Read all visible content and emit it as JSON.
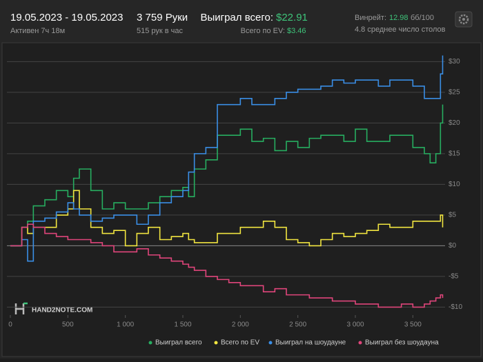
{
  "header": {
    "date_range": "19.05.2023 - 19.05.2023",
    "active": "Активен 7ч 18м",
    "hands": "3 759 Руки",
    "hands_per_hour": "515 рук в час",
    "won_label": "Выиграл всего:",
    "won_value": "$22.91",
    "ev_label": "Всего по EV:",
    "ev_value": "$3.46",
    "winrate_label": "Винрейт:",
    "winrate_value": "12.98",
    "winrate_unit": "бб/100",
    "tables": "4.8 среднее число столов"
  },
  "chart_data": {
    "type": "line",
    "watermark": "HAND2NOTE.COM",
    "x": [
      0,
      100,
      150,
      200,
      300,
      400,
      500,
      550,
      600,
      700,
      800,
      900,
      1000,
      1100,
      1200,
      1300,
      1400,
      1500,
      1550,
      1600,
      1700,
      1800,
      1900,
      2000,
      2100,
      2200,
      2300,
      2400,
      2500,
      2600,
      2700,
      2800,
      2900,
      3000,
      3100,
      3200,
      3300,
      3400,
      3500,
      3600,
      3650,
      3700,
      3740,
      3759
    ],
    "series": [
      {
        "name": "Выиграл всего",
        "color": "#27ae60",
        "values": [
          0,
          3,
          4,
          6.5,
          7.5,
          9,
          8,
          11,
          12.5,
          9,
          6,
          7,
          6,
          6,
          7,
          8,
          9,
          9.5,
          8,
          12.5,
          14,
          18,
          18,
          19,
          17,
          17.5,
          15.5,
          17,
          16,
          17.5,
          18,
          18,
          17,
          19,
          17,
          17,
          18,
          18,
          16,
          15,
          13.5,
          15,
          20,
          23
        ]
      },
      {
        "name": "Всего по EV",
        "color": "#f2e640",
        "values": [
          0,
          3,
          2,
          3,
          3,
          5,
          6,
          9,
          6,
          3,
          2,
          2.5,
          0,
          2,
          3,
          1,
          1.5,
          2,
          1,
          0.5,
          0.5,
          2,
          2,
          3,
          3,
          4,
          3,
          1,
          0.5,
          0,
          1,
          2,
          1.5,
          2,
          2.5,
          3.5,
          3,
          3,
          4,
          4,
          4,
          4,
          5,
          3
        ]
      },
      {
        "name": "Выиграл на шоудауне",
        "color": "#3a8ee6",
        "values": [
          0,
          1,
          -2.5,
          4,
          4.5,
          5.5,
          7,
          6,
          5,
          4,
          4.5,
          5,
          5,
          3.5,
          5,
          7,
          8,
          9,
          12,
          15,
          16,
          23,
          23,
          24,
          23,
          23,
          24,
          25,
          25.5,
          25.5,
          26,
          27,
          26.5,
          27,
          27,
          26,
          27,
          27,
          26,
          24,
          24,
          24,
          28,
          31
        ]
      },
      {
        "name": "Выиграл без шоудауна",
        "color": "#e0457b",
        "values": [
          0,
          3,
          3.5,
          3,
          2,
          1.5,
          1,
          1,
          1,
          0.5,
          0,
          -1,
          -1,
          -0.5,
          -1.5,
          -2,
          -2.5,
          -3,
          -3.5,
          -4,
          -5,
          -5.5,
          -6,
          -6.5,
          -6.5,
          -7.5,
          -7,
          -8,
          -8,
          -8.5,
          -8.5,
          -9,
          -9,
          -9.5,
          -9.5,
          -10,
          -10,
          -9.5,
          -10,
          -9.5,
          -9,
          -8.5,
          -8,
          -8.5
        ]
      }
    ],
    "xlim": [
      0,
      3780
    ],
    "ylim": [
      -11.3,
      31.5
    ],
    "xticks": [
      0,
      500,
      {
        "value": 1000,
        "label": "1 000"
      },
      {
        "value": 1500,
        "label": "1 500"
      },
      {
        "value": 2000,
        "label": "2 000"
      },
      {
        "value": 2500,
        "label": "2 500"
      },
      {
        "value": 3000,
        "label": "3 000"
      },
      {
        "value": 3500,
        "label": "3 500"
      }
    ],
    "yticks": [
      {
        "value": 30,
        "label": "$30"
      },
      {
        "value": 25,
        "label": "$25"
      },
      {
        "value": 20,
        "label": "$20"
      },
      {
        "value": 15,
        "label": "$15"
      },
      {
        "value": 10,
        "label": "$10"
      },
      {
        "value": 5,
        "label": "$5"
      },
      {
        "value": 0,
        "label": "$0"
      },
      {
        "value": -5,
        "label": "-$5"
      },
      {
        "value": -10,
        "label": "-$10"
      }
    ],
    "grid": true
  }
}
